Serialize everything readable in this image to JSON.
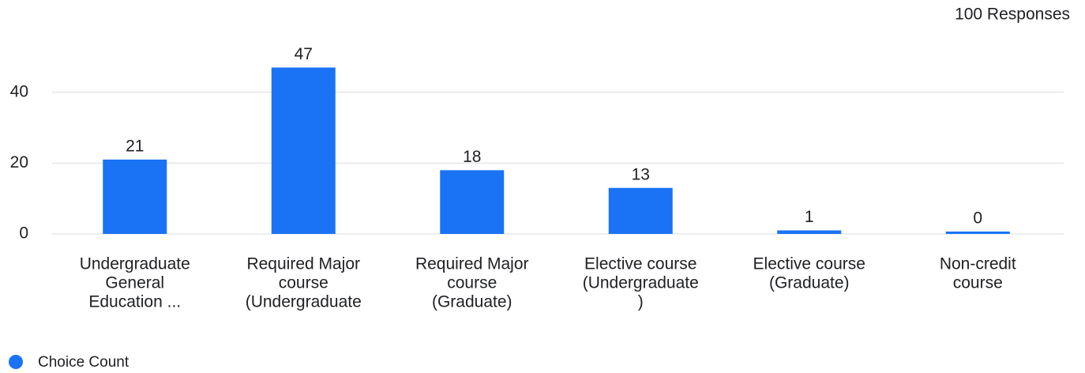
{
  "chart_data": {
    "type": "bar",
    "subtitle": "100 Responses",
    "categories": [
      [
        "Undergraduate",
        "General",
        "Education ..."
      ],
      [
        "Required Major",
        "course",
        "(Undergraduate"
      ],
      [
        "Required Major",
        "course",
        "(Graduate)"
      ],
      [
        "Elective course",
        "(Undergraduate",
        ")"
      ],
      [
        "Elective course",
        "(Graduate)"
      ],
      [
        "Non-credit",
        "course"
      ]
    ],
    "series": [
      {
        "name": "Choice Count",
        "color": "#1a73f5",
        "values": [
          21,
          47,
          18,
          13,
          1,
          0
        ]
      }
    ],
    "ylim": [
      0,
      50
    ],
    "yticks": [
      0,
      20,
      40
    ],
    "grid": true,
    "legend": "bottom-left"
  }
}
